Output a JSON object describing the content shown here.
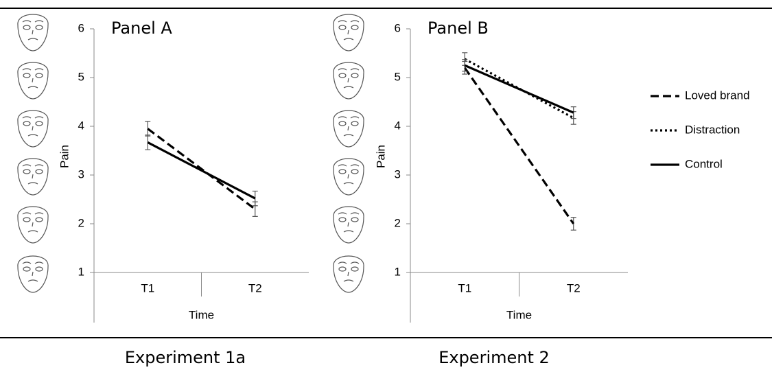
{
  "chart_data": [
    {
      "type": "line",
      "title": "Panel A",
      "caption": "Experiment 1a",
      "xlabel": "Time",
      "ylabel": "Pain",
      "categories": [
        "T1",
        "T2"
      ],
      "ylim": [
        1,
        6
      ],
      "yticks": [
        1,
        2,
        3,
        4,
        5,
        6
      ],
      "series": [
        {
          "name": "Loved brand",
          "color": "#000000",
          "dash": "dashed",
          "values": [
            3.95,
            2.3
          ],
          "errors": [
            0.15,
            0.15
          ]
        },
        {
          "name": "Control",
          "color": "#000000",
          "dash": "solid",
          "values": [
            3.67,
            2.52
          ],
          "errors": [
            0.15,
            0.15
          ]
        }
      ]
    },
    {
      "type": "line",
      "title": "Panel B",
      "caption": "Experiment 2",
      "xlabel": "Time",
      "ylabel": "Pain",
      "categories": [
        "T1",
        "T2"
      ],
      "ylim": [
        1,
        6
      ],
      "yticks": [
        1,
        2,
        3,
        4,
        5,
        6
      ],
      "legend": "right",
      "series": [
        {
          "name": "Loved brand",
          "color": "#000000",
          "dash": "dashed",
          "values": [
            5.2,
            2.0
          ],
          "errors": [
            0.13,
            0.13
          ]
        },
        {
          "name": "Distraction",
          "color": "#000000",
          "dash": "dotted",
          "values": [
            5.38,
            4.17
          ],
          "errors": [
            0.13,
            0.13
          ]
        },
        {
          "name": "Control",
          "color": "#000000",
          "dash": "solid",
          "values": [
            5.25,
            4.28
          ],
          "errors": [
            0.12,
            0.12
          ]
        }
      ]
    }
  ]
}
